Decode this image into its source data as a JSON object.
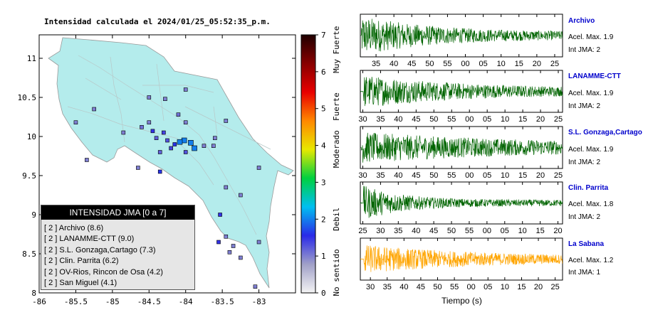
{
  "map": {
    "title": "Intensidad calculada el 2024/01/25_05:52:35_p.m.",
    "x_ticks": [
      "-86",
      "-85.5",
      "-85",
      "-84.5",
      "-84",
      "-83.5",
      "-83"
    ],
    "y_ticks": [
      "11",
      "10.5",
      "10",
      "9.5",
      "9",
      "8.5",
      "8"
    ],
    "xlim": [
      -86,
      -82.5
    ],
    "ylim": [
      8,
      11.3
    ]
  },
  "colorbar": {
    "ticks": [
      "0",
      "1",
      "2",
      "3",
      "4",
      "5",
      "6",
      "7"
    ],
    "range": [
      0,
      7
    ],
    "labels": [
      {
        "text": "No sentido",
        "value": 0.55
      },
      {
        "text": "Debil",
        "value": 2.0
      },
      {
        "text": "Moderado",
        "value": 3.9
      },
      {
        "text": "Fuerte",
        "value": 5.05
      },
      {
        "text": "Muy Fuerte",
        "value": 6.6
      }
    ],
    "colors": [
      "#f4f4f4",
      "#a0a0c8",
      "#2a2ae8",
      "#00bff0",
      "#00d040",
      "#e8e800",
      "#ff8800",
      "#e80000",
      "#880000",
      "#200000"
    ]
  },
  "legend": {
    "title": "INTENSIDAD JMA [0 a 7]",
    "items": [
      "[ 2 ] Archivo (8.6)",
      "[ 2 ] LANAMME-CTT (9.0)",
      "[ 2 ] S.L. Gonzaga,Cartago (7.3)",
      "[ 2 ] Clin. Parrita (6.2)",
      "[ 2 ] OV-Rios, Rincon de Osa (4.2)",
      "[ 2 ] San Miguel (4.1)"
    ]
  },
  "stations": [
    {
      "name": "Archivo",
      "acel": "Acel. Max. 1.9",
      "int": "Int JMA: 2",
      "color": "#006400",
      "ticks": [
        "35",
        "40",
        "45",
        "50",
        "55",
        "00",
        "05",
        "10",
        "15",
        "20",
        "25"
      ],
      "t_start": 30.6,
      "t_end": 87.2,
      "onset": 30.9,
      "amp": 1.0,
      "decay": 0.05
    },
    {
      "name": "LANAMME-CTT",
      "acel": "Acel. Max. 1.9",
      "int": "Int JMA: 2",
      "color": "#006400",
      "ticks": [
        "30",
        "35",
        "40",
        "45",
        "50",
        "55",
        "00",
        "05",
        "10",
        "15",
        "20",
        "25"
      ],
      "t_start": 29.3,
      "t_end": 86.2,
      "onset": 30.2,
      "amp": 0.85,
      "decay": 0.035
    },
    {
      "name": "S.L. Gonzaga,Cartago",
      "acel": "Acel. Max. 1.9",
      "int": "Int JMA: 2",
      "color": "#006400",
      "ticks": [
        "30",
        "35",
        "40",
        "45",
        "50",
        "55",
        "00",
        "05",
        "10",
        "15",
        "20",
        "25"
      ],
      "t_start": 29.3,
      "t_end": 86.2,
      "onset": 29.6,
      "amp": 0.8,
      "decay": 0.02
    },
    {
      "name": "Clin. Parrita",
      "acel": "Acel. Max. 1.8",
      "int": "Int JMA: 2",
      "color": "#006400",
      "ticks": [
        "25",
        "30",
        "35",
        "40",
        "45",
        "50",
        "55",
        "00",
        "05",
        "10",
        "15",
        "20"
      ],
      "t_start": 24.3,
      "t_end": 81.3,
      "onset": 25.2,
      "amp": 0.9,
      "decay": 0.09
    },
    {
      "name": "La Sabana",
      "acel": "Acel. Max. 1.2",
      "int": "Int JMA: 1",
      "color": "#ffa500",
      "ticks": [
        "30",
        "35",
        "40",
        "45",
        "50",
        "55",
        "00",
        "05",
        "10",
        "15",
        "20",
        "25"
      ],
      "t_start": 27.0,
      "t_end": 87.2,
      "onset": 28.0,
      "amp": 0.75,
      "decay": 0.03
    }
  ],
  "time_axis_label": "Tiempo (s)",
  "chart_data": [
    {
      "type": "scatter",
      "title": "Intensidad calculada el 2024/01/25_05:52:35_p.m.",
      "xlabel": "",
      "ylabel": "",
      "xlim": [
        -86,
        -82.5
      ],
      "ylim": [
        8,
        11.3
      ],
      "series": [
        {
          "name": "Intensidad JMA",
          "points": [
            {
              "x": -84.02,
              "y": 9.95,
              "v": 2.0
            },
            {
              "x": -84.08,
              "y": 9.93,
              "v": 2.0
            },
            {
              "x": -83.93,
              "y": 9.92,
              "v": 2.0
            },
            {
              "x": -83.88,
              "y": 9.85,
              "v": 2.0
            },
            {
              "x": -84.15,
              "y": 9.9,
              "v": 1.6
            },
            {
              "x": -84.25,
              "y": 9.95,
              "v": 1.3
            },
            {
              "x": -84.3,
              "y": 10.05,
              "v": 1.4
            },
            {
              "x": -84.45,
              "y": 10.07,
              "v": 1.5
            },
            {
              "x": -84.4,
              "y": 9.98,
              "v": 1.2
            },
            {
              "x": -84.2,
              "y": 9.85,
              "v": 1.4
            },
            {
              "x": -84.0,
              "y": 9.8,
              "v": 1.3
            },
            {
              "x": -83.75,
              "y": 9.88,
              "v": 1.0
            },
            {
              "x": -83.62,
              "y": 9.88,
              "v": 1.0
            },
            {
              "x": -84.35,
              "y": 9.8,
              "v": 1.2
            },
            {
              "x": -84.65,
              "y": 9.6,
              "v": 1.0
            },
            {
              "x": -84.35,
              "y": 9.55,
              "v": 1.6
            },
            {
              "x": -84.0,
              "y": 10.18,
              "v": 1.0
            },
            {
              "x": -84.1,
              "y": 10.28,
              "v": 1.1
            },
            {
              "x": -84.0,
              "y": 10.6,
              "v": 1.0
            },
            {
              "x": -84.5,
              "y": 10.5,
              "v": 1.0
            },
            {
              "x": -84.28,
              "y": 10.48,
              "v": 1.0
            },
            {
              "x": -83.6,
              "y": 9.98,
              "v": 1.0
            },
            {
              "x": -83.45,
              "y": 10.2,
              "v": 1.0
            },
            {
              "x": -84.6,
              "y": 10.12,
              "v": 1.1
            },
            {
              "x": -84.85,
              "y": 10.05,
              "v": 1.0
            },
            {
              "x": -85.5,
              "y": 10.18,
              "v": 1.0
            },
            {
              "x": -85.25,
              "y": 10.35,
              "v": 1.0
            },
            {
              "x": -83.0,
              "y": 9.6,
              "v": 1.0
            },
            {
              "x": -83.45,
              "y": 9.35,
              "v": 1.0
            },
            {
              "x": -83.25,
              "y": 9.25,
              "v": 1.0
            },
            {
              "x": -83.53,
              "y": 9.0,
              "v": 1.5
            },
            {
              "x": -83.45,
              "y": 8.72,
              "v": 1.0
            },
            {
              "x": -83.55,
              "y": 8.65,
              "v": 1.5
            },
            {
              "x": -83.35,
              "y": 8.6,
              "v": 1.0
            },
            {
              "x": -83.4,
              "y": 8.52,
              "v": 1.0
            },
            {
              "x": -83.0,
              "y": 8.65,
              "v": 1.0
            },
            {
              "x": -83.25,
              "y": 8.45,
              "v": 1.0
            },
            {
              "x": -83.05,
              "y": 8.08,
              "v": 1.0
            },
            {
              "x": -85.35,
              "y": 9.7,
              "v": 1.0
            },
            {
              "x": -84.5,
              "y": 10.18,
              "v": 1.0
            }
          ]
        }
      ]
    },
    {
      "type": "line",
      "title": "Archivo",
      "xlabel": "",
      "ylabel": "",
      "x_ticks": [
        "35",
        "40",
        "45",
        "50",
        "55",
        "00",
        "05",
        "10",
        "15",
        "20",
        "25"
      ],
      "peak_acceleration": 1.9,
      "jma_intensity": 2
    },
    {
      "type": "line",
      "title": "LANAMME-CTT",
      "xlabel": "",
      "ylabel": "",
      "x_ticks": [
        "30",
        "35",
        "40",
        "45",
        "50",
        "55",
        "00",
        "05",
        "10",
        "15",
        "20",
        "25"
      ],
      "peak_acceleration": 1.9,
      "jma_intensity": 2
    },
    {
      "type": "line",
      "title": "S.L. Gonzaga,Cartago",
      "xlabel": "",
      "ylabel": "",
      "x_ticks": [
        "30",
        "35",
        "40",
        "45",
        "50",
        "55",
        "00",
        "05",
        "10",
        "15",
        "20",
        "25"
      ],
      "peak_acceleration": 1.9,
      "jma_intensity": 2
    },
    {
      "type": "line",
      "title": "Clin. Parrita",
      "xlabel": "",
      "ylabel": "",
      "x_ticks": [
        "25",
        "30",
        "35",
        "40",
        "45",
        "50",
        "55",
        "00",
        "05",
        "10",
        "15",
        "20"
      ],
      "peak_acceleration": 1.8,
      "jma_intensity": 2
    },
    {
      "type": "line",
      "title": "La Sabana",
      "xlabel": "Tiempo (s)",
      "ylabel": "",
      "x_ticks": [
        "30",
        "35",
        "40",
        "45",
        "50",
        "55",
        "00",
        "05",
        "10",
        "15",
        "20",
        "25"
      ],
      "peak_acceleration": 1.2,
      "jma_intensity": 1
    }
  ]
}
